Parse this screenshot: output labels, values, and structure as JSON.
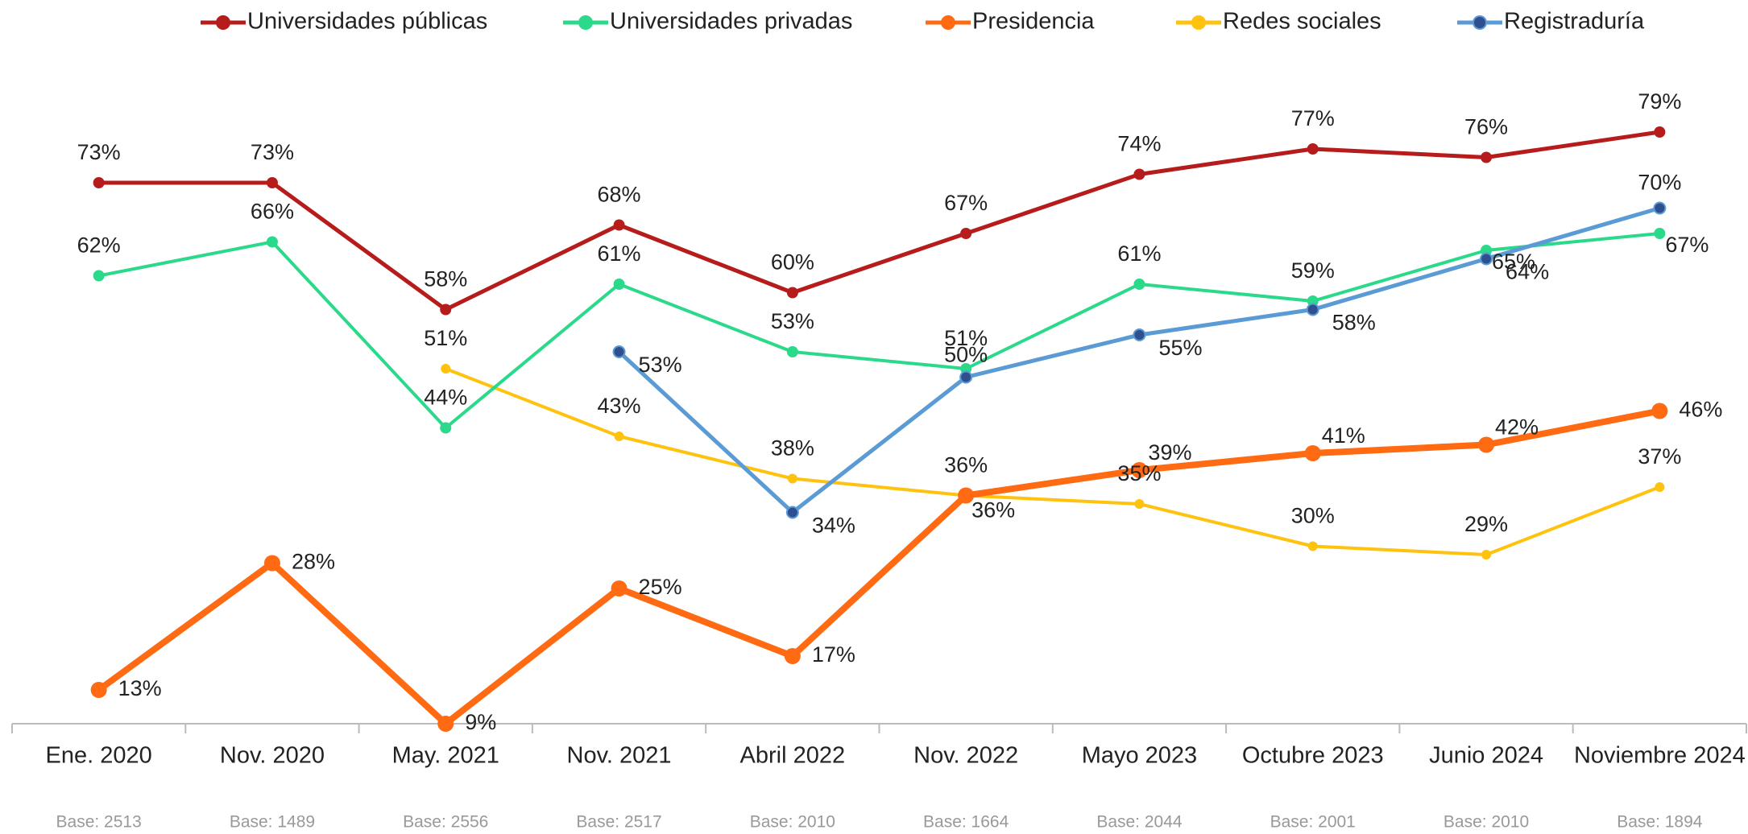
{
  "chart_data": {
    "type": "line",
    "categories": [
      "Ene. 2020",
      "Nov. 2020",
      "May. 2021",
      "Nov. 2021",
      "Abril 2022",
      "Nov. 2022",
      "Mayo 2023",
      "Octubre 2023",
      "Junio 2024",
      "Noviembre 2024"
    ],
    "base_labels": [
      "Base: 2513",
      "Base: 1489",
      "Base: 2556",
      "Base: 2517",
      "Base: 2010",
      "Base: 1664",
      "Base: 2044",
      "Base: 2001",
      "Base: 2010",
      "Base: 1894"
    ],
    "ylim": [
      9,
      85
    ],
    "legend": "top",
    "series": [
      {
        "name": "Universidades públicas",
        "color": "#b71c1c",
        "values": [
          73,
          73,
          58,
          68,
          60,
          67,
          74,
          77,
          76,
          79
        ],
        "value_labels": [
          "73%",
          "73%",
          "58%",
          "68%",
          "60%",
          "67%",
          "74%",
          "77%",
          "76%",
          "79%"
        ]
      },
      {
        "name": "Universidades privadas",
        "color": "#2bd98a",
        "values": [
          62,
          66,
          44,
          61,
          53,
          51,
          61,
          59,
          65,
          67
        ],
        "value_labels": [
          "62%",
          "66%",
          "44%",
          "61%",
          "53%",
          "51%",
          "61%",
          "59%",
          "65%",
          "67%"
        ]
      },
      {
        "name": "Presidencia",
        "color": "#ff6a13",
        "values": [
          13,
          28,
          9,
          25,
          17,
          36,
          39,
          41,
          42,
          46
        ],
        "value_labels": [
          "13%",
          "28%",
          "9%",
          "25%",
          "17%",
          "36%",
          "39%",
          "41%",
          "42%",
          "46%"
        ]
      },
      {
        "name": "Redes sociales",
        "color": "#ffc20e",
        "values": [
          null,
          null,
          51,
          43,
          38,
          36,
          35,
          30,
          29,
          37
        ],
        "value_labels": [
          null,
          null,
          "51%",
          "43%",
          "38%",
          "36%",
          "35%",
          "30%",
          "29%",
          "37%"
        ]
      },
      {
        "name": "Registraduría",
        "color": "#5b9bd5",
        "values": [
          null,
          null,
          null,
          53,
          34,
          50,
          55,
          58,
          64,
          70
        ],
        "value_labels": [
          null,
          null,
          null,
          "53%",
          "34%",
          "50%",
          "55%",
          "58%",
          "64%",
          "70%"
        ]
      }
    ]
  }
}
